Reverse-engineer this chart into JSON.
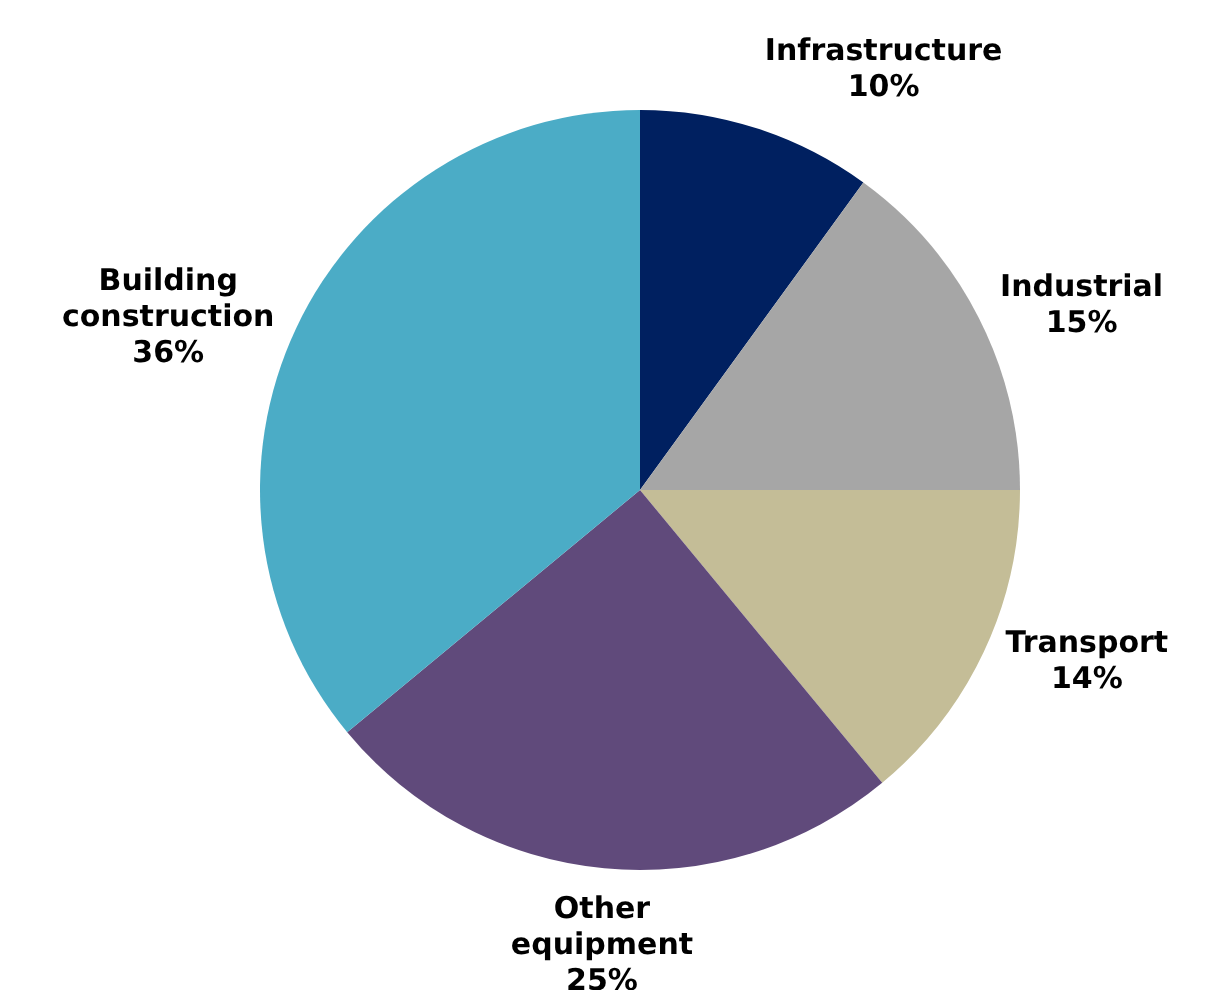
{
  "chart_data": {
    "type": "pie",
    "categories": [
      "Infrastructure",
      "Industrial",
      "Transport",
      "Other equipment",
      "Building construction"
    ],
    "values": [
      10,
      15,
      14,
      25,
      36
    ],
    "value_labels": [
      "10%",
      "15%",
      "14%",
      "25%",
      "36%"
    ],
    "colors": [
      "#002060",
      "#a6a6a6",
      "#c4bd97",
      "#604a7b",
      "#4bacc6"
    ],
    "legend": false
  }
}
